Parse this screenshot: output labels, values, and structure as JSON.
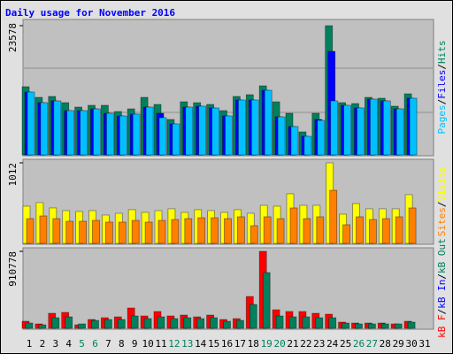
{
  "legend_separator": "/",
  "chart_data": [
    {
      "type": "bar",
      "title": "Daily usage for November 2016",
      "ylim": [
        0,
        23578
      ],
      "yticks": [
        23578
      ],
      "series": [
        {
          "name": "Pages",
          "color": "#00c0ff",
          "values": [
            11466,
            9528,
            9851,
            8075,
            8075,
            8398,
            7590,
            7106,
            7429,
            8721,
            6783,
            5652,
            8721,
            8882,
            8559,
            7106,
            10013,
            10013,
            11789,
            6944,
            5168,
            3391,
            6298,
            9851,
            9044,
            8559,
            10174,
            9851,
            8398,
            10336,
            null
          ]
        },
        {
          "name": "Files",
          "color": "#0000ff",
          "values": [
            11466,
            9528,
            9851,
            8075,
            8075,
            8398,
            7590,
            7106,
            7429,
            8721,
            7590,
            5652,
            8721,
            8882,
            8559,
            7106,
            10013,
            10013,
            11789,
            6944,
            5168,
            3391,
            6460,
            18895,
            9044,
            8559,
            10174,
            9851,
            8398,
            10336,
            null
          ]
        },
        {
          "name": "Hits",
          "color": "#00805c",
          "values": [
            12435,
            10497,
            10659,
            9528,
            8721,
            9044,
            9044,
            7913,
            8398,
            10497,
            9205,
            6460,
            9690,
            9528,
            9205,
            8075,
            10659,
            10982,
            12597,
            9690,
            7590,
            4199,
            7590,
            23578,
            9528,
            9367,
            10497,
            10336,
            8882,
            11143,
            null
          ]
        }
      ]
    },
    {
      "type": "bar",
      "ylim": [
        0,
        1012
      ],
      "yticks": [
        1012
      ],
      "series": [
        {
          "name": "Sites",
          "color": "#ff8000",
          "values": [
            311,
            345,
            311,
            278,
            278,
            289,
            267,
            267,
            289,
            267,
            289,
            300,
            311,
            322,
            322,
            311,
            334,
            222,
            334,
            311,
            445,
            311,
            334,
            667,
            234,
            334,
            300,
            311,
            334,
            445,
            null
          ]
        },
        {
          "name": "Visits",
          "color": "#ffff00",
          "values": [
            467,
            512,
            445,
            411,
            400,
            411,
            356,
            378,
            423,
            389,
            411,
            434,
            389,
            423,
            411,
            389,
            423,
            378,
            478,
            467,
            623,
            478,
            478,
            1012,
            367,
            500,
            434,
            434,
            434,
            612,
            null
          ]
        }
      ]
    },
    {
      "type": "bar",
      "ylim": [
        0,
        910778
      ],
      "yticks": [
        910778
      ],
      "categories": [
        "1",
        "2",
        "3",
        "4",
        "5",
        "6",
        "7",
        "8",
        "9",
        "10",
        "11",
        "12",
        "13",
        "14",
        "15",
        "16",
        "17",
        "18",
        "19",
        "20",
        "21",
        "22",
        "23",
        "24",
        "25",
        "26",
        "27",
        "28",
        "29",
        "30",
        "31"
      ],
      "category_colors": [
        "#000000",
        "#000000",
        "#000000",
        "#000000",
        "#00805c",
        "#00805c",
        "#000000",
        "#000000",
        "#000000",
        "#000000",
        "#000000",
        "#00805c",
        "#00805c",
        "#000000",
        "#000000",
        "#000000",
        "#000000",
        "#000000",
        "#00805c",
        "#00805c",
        "#000000",
        "#000000",
        "#000000",
        "#000000",
        "#000000",
        "#00805c",
        "#00805c",
        "#000000",
        "#000000",
        "#000000",
        "#000000"
      ],
      "series": [
        {
          "name": "kB F",
          "color": "#ff0000",
          "values": [
            83752,
            52345,
            177973,
            188442,
            41876,
            104690,
            125628,
            136097,
            240787,
            146566,
            198911,
            146566,
            157035,
            136097,
            157035,
            104690,
            115159,
            376884,
            910778,
            219849,
            198911,
            198911,
            177973,
            167504,
            73283,
            62814,
            62814,
            62814,
            52345,
            83752,
            null
          ]
        },
        {
          "name": "kB In",
          "color": "#0000ff",
          "values": [
            0,
            0,
            0,
            0,
            0,
            0,
            0,
            0,
            0,
            0,
            0,
            0,
            0,
            0,
            0,
            0,
            0,
            0,
            0,
            0,
            0,
            0,
            0,
            0,
            0,
            0,
            0,
            0,
            0,
            0,
            null
          ]
        },
        {
          "name": "kB Out",
          "color": "#00805c",
          "values": [
            62814,
            41876,
            125628,
            136097,
            52345,
            94221,
            104690,
            104690,
            146566,
            115159,
            136097,
            115159,
            125628,
            115159,
            125628,
            83752,
            94221,
            282663,
            659547,
            146566,
            136097,
            136097,
            125628,
            125628,
            62814,
            52345,
            52345,
            52345,
            52345,
            73283,
            null
          ]
        }
      ]
    }
  ]
}
